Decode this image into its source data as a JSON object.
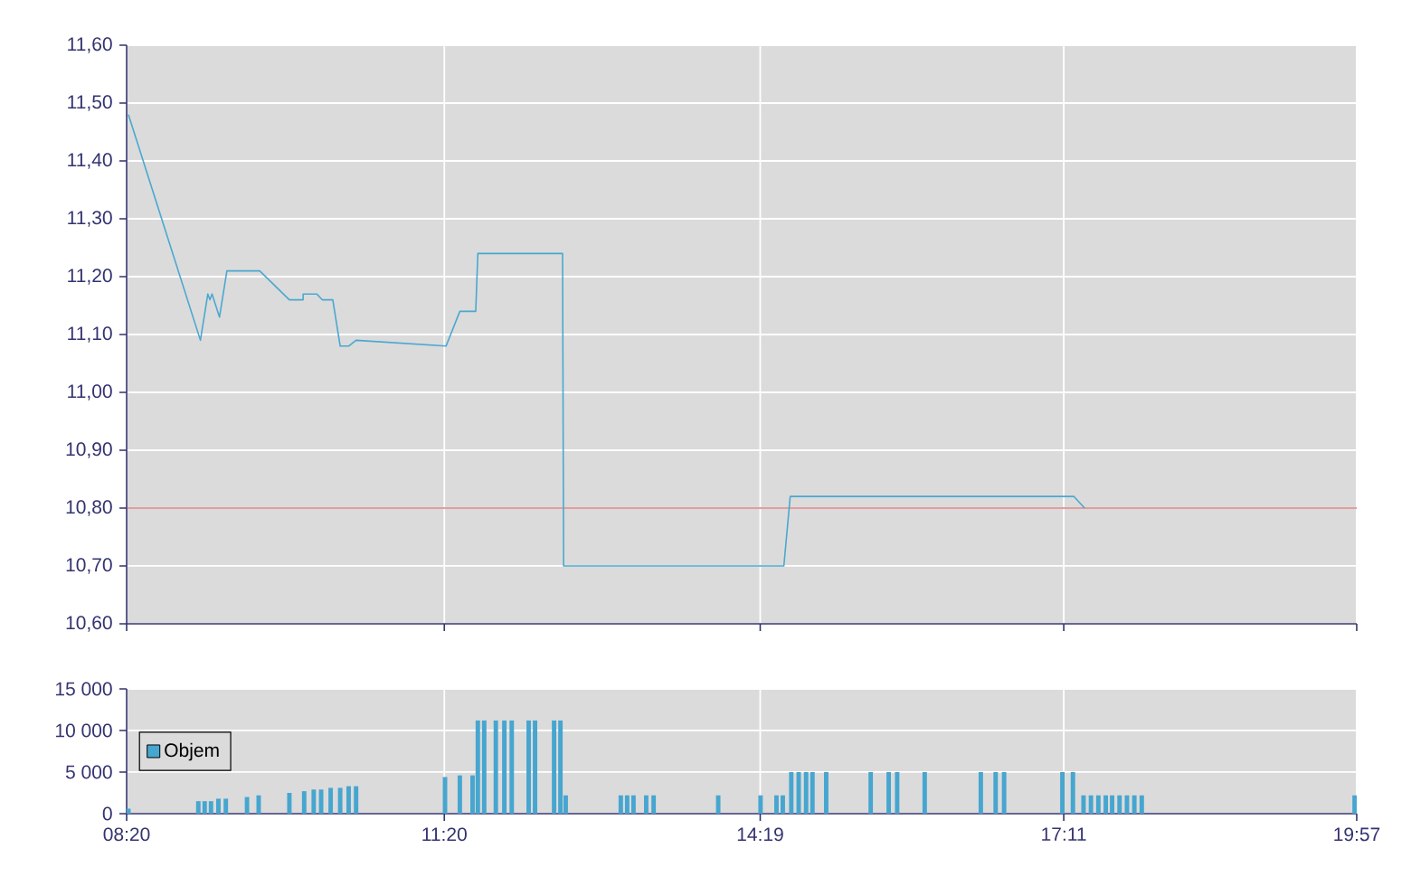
{
  "chart_data": [
    {
      "type": "line",
      "color": "#4aa8d0",
      "grid": true,
      "tick_labels": "y",
      "x": [
        8.35,
        9.03,
        9.1,
        9.12,
        9.14,
        9.21,
        9.28,
        9.59,
        9.87,
        10.0,
        10.0,
        10.13,
        10.18,
        10.28,
        10.35,
        10.43,
        10.5,
        11.35,
        11.48,
        11.63,
        11.65,
        12.45,
        12.46,
        14.54,
        14.6,
        17.28,
        17.38
      ],
      "values": [
        11.48,
        11.09,
        11.17,
        11.16,
        11.17,
        11.13,
        11.21,
        11.21,
        11.16,
        11.16,
        11.17,
        11.17,
        11.16,
        11.16,
        11.08,
        11.08,
        11.09,
        11.08,
        11.14,
        11.14,
        11.24,
        11.24,
        10.7,
        10.7,
        10.82,
        10.82,
        10.8
      ],
      "xlim": [
        8.3333,
        19.95
      ],
      "xticks": [
        {
          "value": 8.3333,
          "label": null
        },
        {
          "value": 11.3333,
          "label": null
        },
        {
          "value": 14.3167,
          "label": null
        },
        {
          "value": 17.1833,
          "label": null
        },
        {
          "value": 19.95,
          "label": null
        }
      ],
      "ylim": [
        10.6,
        11.6
      ],
      "yticks": [
        {
          "value": 10.6,
          "label": "10,60"
        },
        {
          "value": 10.7,
          "label": "10,70"
        },
        {
          "value": 10.8,
          "label": "10,80"
        },
        {
          "value": 10.9,
          "label": "10,90"
        },
        {
          "value": 11.0,
          "label": "11,00"
        },
        {
          "value": 11.1,
          "label": "11,10"
        },
        {
          "value": 11.2,
          "label": "11,20"
        },
        {
          "value": 11.3,
          "label": "11,30"
        },
        {
          "value": 11.4,
          "label": "11,40"
        },
        {
          "value": 11.5,
          "label": "11,50"
        },
        {
          "value": 11.6,
          "label": "11,60"
        }
      ],
      "ref_lines": [
        {
          "axis": "y",
          "value": 10.8,
          "color": "#c83c3c"
        }
      ]
    },
    {
      "type": "bar",
      "grid": true,
      "legend": "left",
      "x": [
        8.35,
        9.01,
        9.07,
        9.13,
        9.2,
        9.27,
        9.47,
        9.58,
        9.87,
        10.01,
        10.1,
        10.17,
        10.26,
        10.35,
        10.43,
        10.5,
        11.34,
        11.48,
        11.6,
        11.65,
        11.71,
        11.82,
        11.9,
        11.97,
        12.13,
        12.19,
        12.37,
        12.43,
        12.48,
        13.0,
        13.06,
        13.12,
        13.24,
        13.31,
        13.92,
        14.32,
        14.47,
        14.53,
        14.61,
        14.68,
        14.75,
        14.81,
        14.94,
        15.36,
        15.53,
        15.61,
        15.87,
        16.4,
        16.54,
        16.62,
        17.17,
        17.27,
        17.37,
        17.44,
        17.51,
        17.58,
        17.64,
        17.71,
        17.78,
        17.85,
        17.92,
        19.93
      ],
      "series": [
        {
          "name": "Objem",
          "color": "#46a6cf",
          "values": [
            600,
            1500,
            1500,
            1500,
            1800,
            1800,
            2000,
            2200,
            2500,
            2700,
            2900,
            2900,
            3100,
            3100,
            3300,
            3300,
            4400,
            4600,
            4600,
            11200,
            11200,
            11200,
            11200,
            11200,
            11200,
            11200,
            11200,
            11200,
            2200,
            2200,
            2200,
            2200,
            2200,
            2200,
            2200,
            2200,
            2200,
            2200,
            5000,
            5000,
            5000,
            5000,
            5000,
            5000,
            5000,
            5000,
            5000,
            5000,
            5000,
            5000,
            5000,
            5000,
            2200,
            2200,
            2200,
            2200,
            2200,
            2200,
            2200,
            2200,
            2200,
            2200
          ]
        }
      ],
      "xlim": [
        8.3333,
        19.95
      ],
      "xticks": [
        {
          "value": 8.3333,
          "label": "08:20"
        },
        {
          "value": 11.3333,
          "label": "11:20"
        },
        {
          "value": 14.3167,
          "label": "14:19"
        },
        {
          "value": 17.1833,
          "label": "17:11"
        },
        {
          "value": 19.95,
          "label": "19:57"
        }
      ],
      "ylim": [
        0,
        15000
      ],
      "yticks": [
        0,
        {
          "value": 5000,
          "label": "5 000"
        },
        {
          "value": 10000,
          "label": "10 000"
        },
        {
          "value": 15000,
          "label": "15 000"
        }
      ]
    }
  ]
}
